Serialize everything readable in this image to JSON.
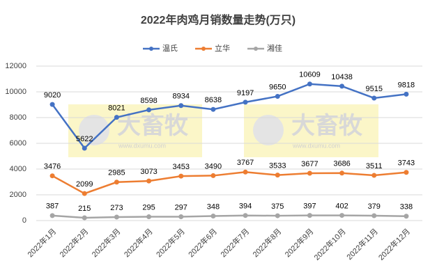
{
  "chart_data": {
    "type": "line",
    "title": "2022年肉鸡月销数量走势(万只)",
    "categories": [
      "2022年1月",
      "2022年2月",
      "2022年3月",
      "2022年4月",
      "2022年5月",
      "2022年6月",
      "2022年7月",
      "2022年8月",
      "2022年9月",
      "2022年10月",
      "2022年11月",
      "2022年12月"
    ],
    "series": [
      {
        "name": "温氏",
        "color": "#4472c4",
        "values": [
          9020,
          5622,
          8021,
          8598,
          8934,
          8638,
          9197,
          9650,
          10609,
          10438,
          9515,
          9818
        ]
      },
      {
        "name": "立华",
        "color": "#ed7d31",
        "values": [
          3476,
          2099,
          2985,
          3073,
          3453,
          3490,
          3767,
          3533,
          3677,
          3686,
          3511,
          3743
        ]
      },
      {
        "name": "湘佳",
        "color": "#a5a5a5",
        "values": [
          387,
          215,
          273,
          295,
          297,
          348,
          394,
          375,
          397,
          402,
          379,
          338
        ]
      }
    ],
    "ylim": [
      0,
      12000
    ],
    "yticks": [
      0,
      2000,
      4000,
      6000,
      8000,
      10000,
      12000
    ],
    "grid": true,
    "legend": "top",
    "watermarks": [
      {
        "text": "大畜牧",
        "subtext": "www.dxumu.com"
      },
      {
        "text": "大畜牧",
        "subtext": "www.dxumu.com"
      }
    ]
  }
}
